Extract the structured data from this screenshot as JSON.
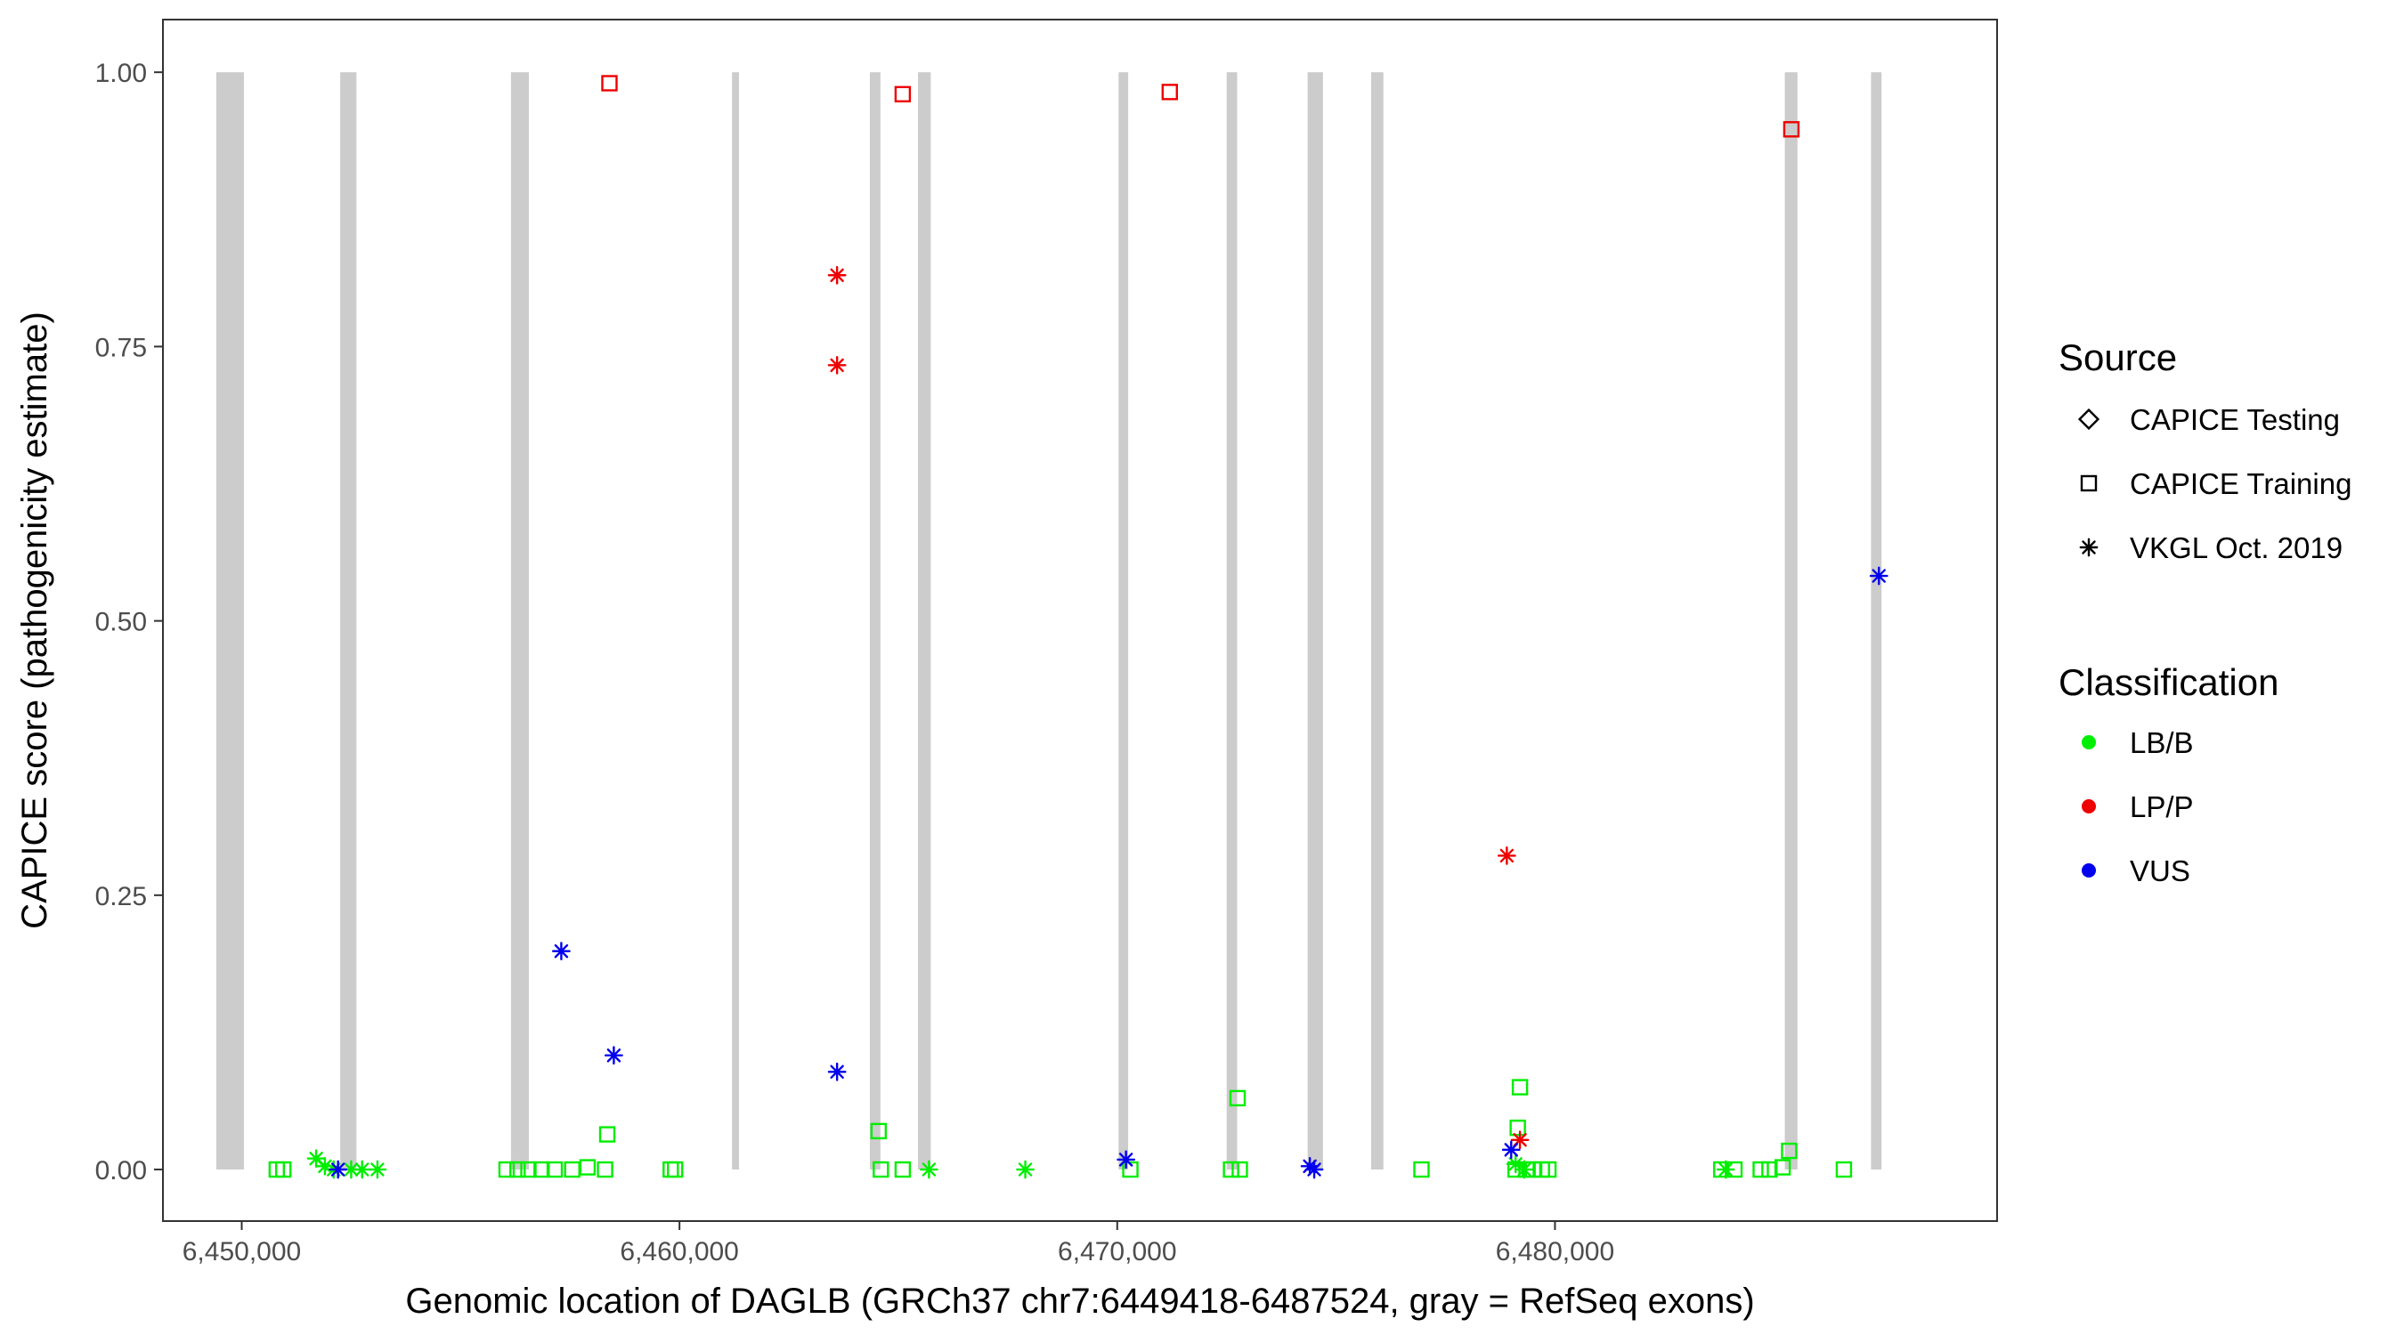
{
  "chart_data": {
    "type": "scatter",
    "xlabel": "Genomic location of DAGLB (GRCh37 chr7:6449418-6487524, gray = RefSeq exons)",
    "ylabel": "CAPICE score (pathogenicity estimate)",
    "xlim": [
      6448200,
      6490100
    ],
    "ylim": [
      -0.047,
      1.048
    ],
    "x_ticks": [
      6450000,
      6460000,
      6470000,
      6480000
    ],
    "x_tick_labels": [
      "6,450,000",
      "6,460,000",
      "6,470,000",
      "6,480,000"
    ],
    "y_ticks": [
      0,
      0.25,
      0.5,
      0.75,
      1.0
    ],
    "y_tick_labels": [
      "0.00",
      "0.25",
      "0.50",
      "0.75",
      "1.00"
    ],
    "grid": false,
    "legend_position": "right",
    "exon_color": "#cccccc",
    "exons": [
      {
        "start": 6449418,
        "end": 6450050
      },
      {
        "start": 6452250,
        "end": 6452620
      },
      {
        "start": 6456150,
        "end": 6456560
      },
      {
        "start": 6461200,
        "end": 6461360
      },
      {
        "start": 6464350,
        "end": 6464590
      },
      {
        "start": 6465450,
        "end": 6465740
      },
      {
        "start": 6470030,
        "end": 6470250
      },
      {
        "start": 6472500,
        "end": 6472740
      },
      {
        "start": 6474350,
        "end": 6474700
      },
      {
        "start": 6475800,
        "end": 6476080
      },
      {
        "start": 6485250,
        "end": 6485540
      },
      {
        "start": 6487220,
        "end": 6487460
      }
    ],
    "legend": {
      "source": {
        "title": "Source",
        "items": [
          {
            "label": "CAPICE Testing",
            "shape": "diamond"
          },
          {
            "label": "CAPICE Training",
            "shape": "square"
          },
          {
            "label": "VKGL Oct. 2019",
            "shape": "asterisk"
          }
        ]
      },
      "classification": {
        "title": "Classification",
        "items": [
          {
            "label": "LB/B",
            "color": "#00ee00"
          },
          {
            "label": "LP/P",
            "color": "#ee0000"
          },
          {
            "label": "VUS",
            "color": "#0000ee"
          }
        ]
      }
    },
    "series": [
      {
        "source": "CAPICE Training",
        "classification": "LB/B",
        "shape": "square",
        "color": "#00ee00",
        "points": [
          [
            6450800,
            0
          ],
          [
            6450950,
            0
          ],
          [
            6456050,
            0
          ],
          [
            6456300,
            0
          ],
          [
            6456550,
            0
          ],
          [
            6456850,
            0
          ],
          [
            6457150,
            0
          ],
          [
            6457550,
            0
          ],
          [
            6457900,
            0.002
          ],
          [
            6458300,
            0
          ],
          [
            6458350,
            0.032
          ],
          [
            6459800,
            0
          ],
          [
            6459900,
            0
          ],
          [
            6464550,
            0.035
          ],
          [
            6464600,
            0
          ],
          [
            6465100,
            0
          ],
          [
            6470300,
            0
          ],
          [
            6472600,
            0
          ],
          [
            6472750,
            0.065
          ],
          [
            6472800,
            0
          ],
          [
            6476950,
            0
          ],
          [
            6479100,
            0
          ],
          [
            6479200,
            0.075
          ],
          [
            6479150,
            0.038
          ],
          [
            6479350,
            0
          ],
          [
            6479500,
            0
          ],
          [
            6479700,
            0
          ],
          [
            6479850,
            0
          ],
          [
            6483800,
            0
          ],
          [
            6484100,
            0
          ],
          [
            6484700,
            0
          ],
          [
            6484900,
            0
          ],
          [
            6485200,
            0.002
          ],
          [
            6485350,
            0.017
          ],
          [
            6486600,
            0
          ]
        ]
      },
      {
        "source": "CAPICE Training",
        "classification": "LP/P",
        "shape": "square",
        "color": "#ee0000",
        "points": [
          [
            6458400,
            0.99
          ],
          [
            6465100,
            0.98
          ],
          [
            6471200,
            0.982
          ],
          [
            6485400,
            0.948
          ]
        ]
      },
      {
        "source": "VKGL Oct. 2019",
        "classification": "LB/B",
        "shape": "asterisk",
        "color": "#00ee00",
        "points": [
          [
            6451700,
            0.01
          ],
          [
            6451900,
            0.003
          ],
          [
            6452100,
            0
          ],
          [
            6452500,
            0
          ],
          [
            6452750,
            0
          ],
          [
            6453100,
            0
          ],
          [
            6465700,
            0
          ],
          [
            6467900,
            0
          ],
          [
            6479100,
            0.005
          ],
          [
            6479300,
            0
          ],
          [
            6483900,
            0
          ]
        ]
      },
      {
        "source": "VKGL Oct. 2019",
        "classification": "LP/P",
        "shape": "asterisk",
        "color": "#ee0000",
        "points": [
          [
            6463600,
            0.815
          ],
          [
            6463600,
            0.733
          ],
          [
            6478900,
            0.286
          ],
          [
            6479200,
            0.027
          ]
        ]
      },
      {
        "source": "VKGL Oct. 2019",
        "classification": "VUS",
        "shape": "asterisk",
        "color": "#0000ee",
        "points": [
          [
            6452200,
            0
          ],
          [
            6457300,
            0.199
          ],
          [
            6458500,
            0.104
          ],
          [
            6463600,
            0.089
          ],
          [
            6470200,
            0.009
          ],
          [
            6474400,
            0.003
          ],
          [
            6474500,
            0
          ],
          [
            6479000,
            0.018
          ],
          [
            6487400,
            0.541
          ]
        ]
      }
    ]
  }
}
